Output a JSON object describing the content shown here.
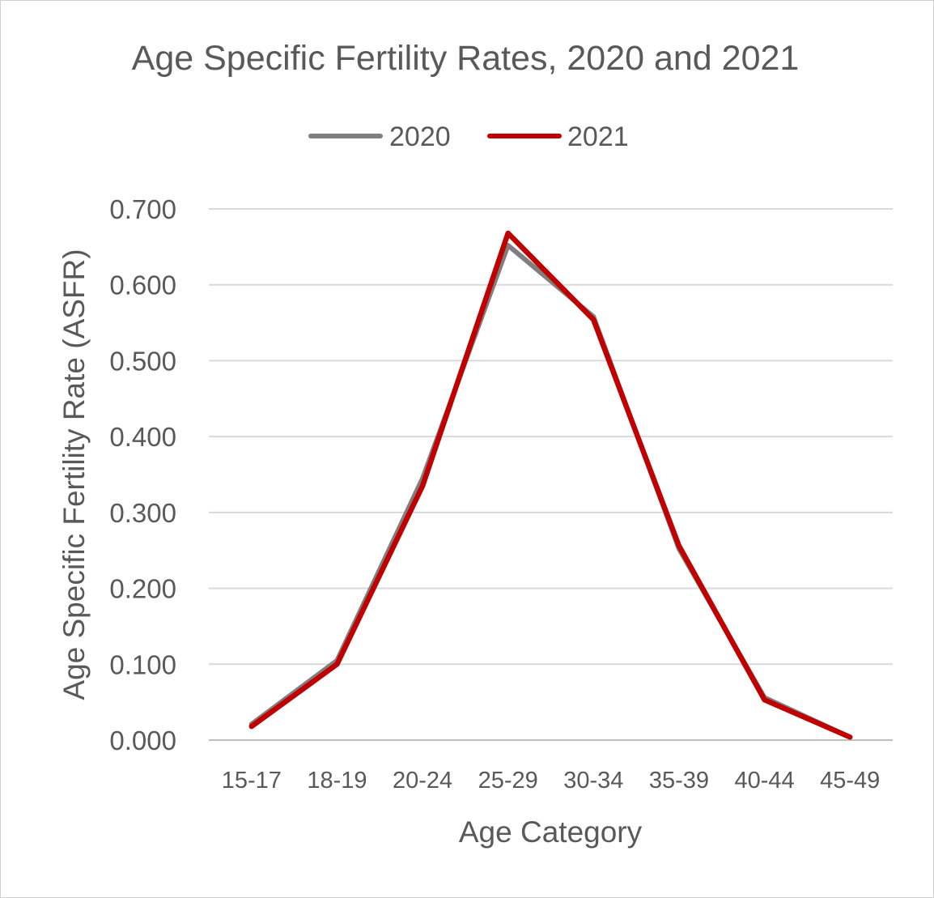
{
  "chart_data": {
    "type": "line",
    "title": "Age Specific Fertility Rates, 2020 and 2021",
    "xlabel": "Age Category",
    "ylabel": "Age Specific Fertility Rate (ASFR)",
    "categories": [
      "15-17",
      "18-19",
      "20-24",
      "25-29",
      "30-34",
      "35-39",
      "40-44",
      "45-49"
    ],
    "ylim": [
      0,
      0.7
    ],
    "yticks": [
      "0.000",
      "0.100",
      "0.200",
      "0.300",
      "0.400",
      "0.500",
      "0.600",
      "0.700"
    ],
    "grid": true,
    "legend_position": "top",
    "series": [
      {
        "name": "2020",
        "color": "#7f7f7f",
        "values": [
          0.021,
          0.105,
          0.345,
          0.652,
          0.558,
          0.252,
          0.056,
          0.004
        ]
      },
      {
        "name": "2021",
        "color": "#c00000",
        "values": [
          0.018,
          0.1,
          0.335,
          0.668,
          0.554,
          0.256,
          0.053,
          0.004
        ]
      }
    ]
  }
}
